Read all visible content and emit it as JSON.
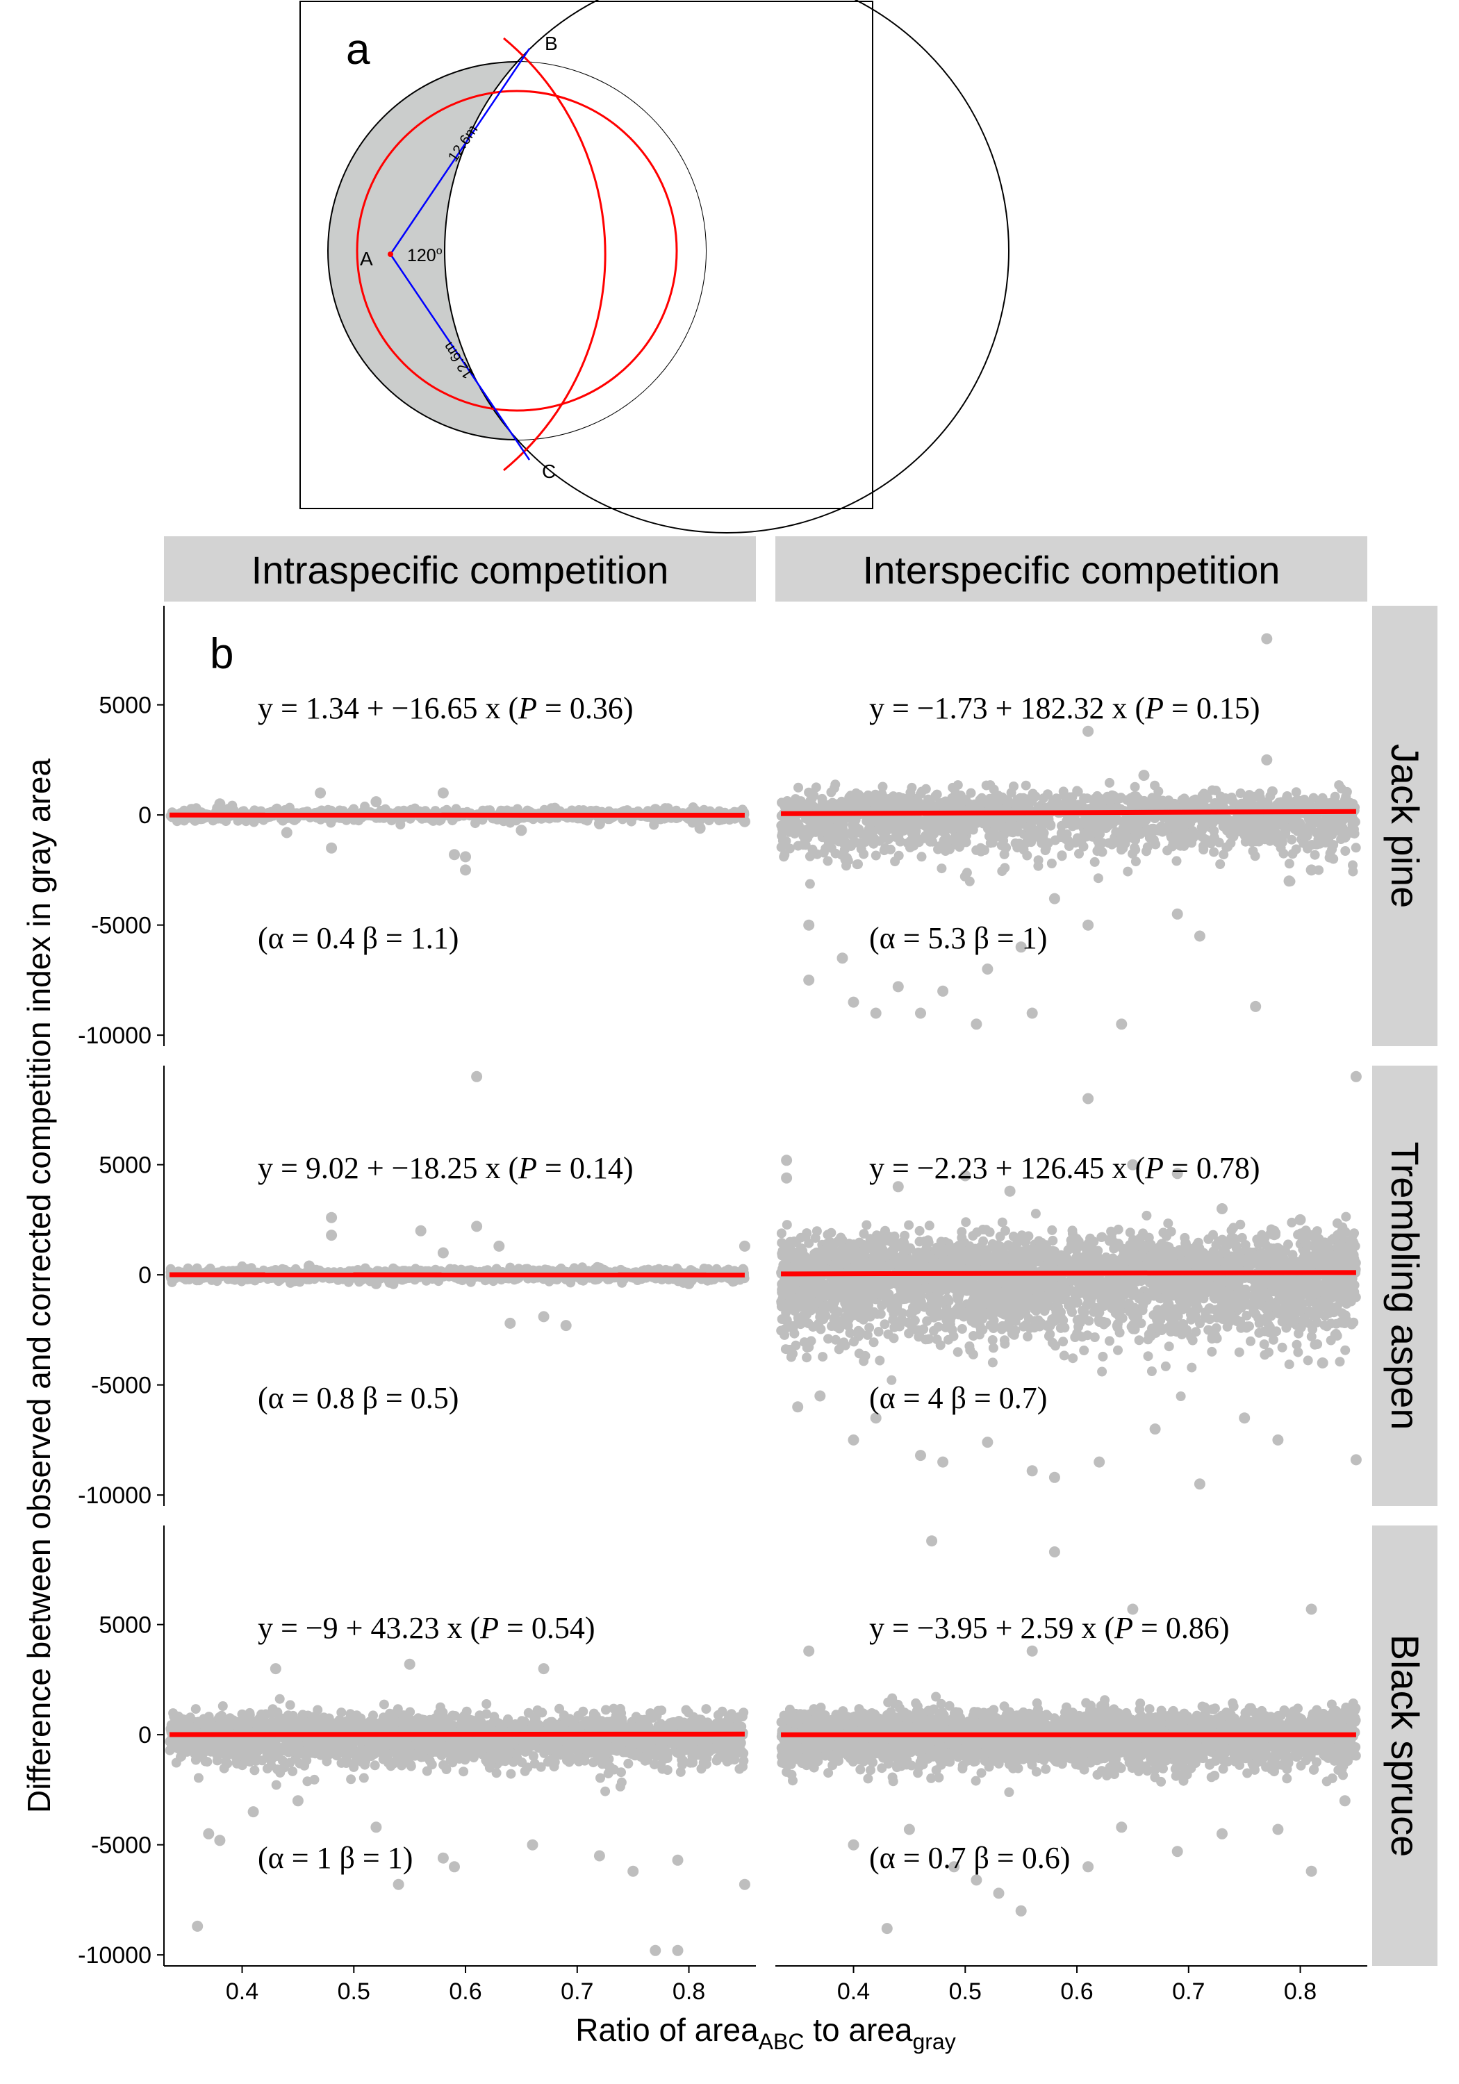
{
  "panel_a": {
    "label": "a",
    "point_labels": [
      "A",
      "B",
      "C"
    ],
    "radius_label": "12.6m",
    "angle_label": "120",
    "angle_unit": "o"
  },
  "panel_b": {
    "label": "b",
    "columns": [
      "Intraspecific competition",
      "Interspecific competition"
    ],
    "rows": [
      "Jack pine",
      "Trembling aspen",
      "Black spruce"
    ],
    "ylabel": "Difference between observed and corrected competition index in gray area",
    "xlabel_parts": [
      "Ratio of area",
      "ABC",
      " to area",
      "gray"
    ],
    "x_ticks": [
      "0.4",
      "0.5",
      "0.6",
      "0.7",
      "0.8"
    ],
    "y_ticks": [
      "5000",
      "0",
      "-5000",
      "-10000"
    ]
  },
  "colors": {
    "point": "#bebebe",
    "fit_line": "#ff0000",
    "strip": "#d3d3d3",
    "circle_fill": "#cbcdcc",
    "radius_line": "#0000ff"
  },
  "chart_data": [
    {
      "type": "scatter",
      "species": "Jack pine",
      "competition": "Intraspecific competition",
      "xlim": [
        0.33,
        0.86
      ],
      "ylim": [
        -10500,
        9500
      ],
      "equation": {
        "intercept": "1.34",
        "slope": "−16.65",
        "p": "0.36"
      },
      "params": {
        "alpha": "0.4",
        "beta": "1.1"
      },
      "fit": {
        "intercept": 1.34,
        "slope": -16.65
      },
      "points": [
        [
          0.38,
          500
        ],
        [
          0.44,
          -800
        ],
        [
          0.47,
          1000
        ],
        [
          0.48,
          -1500
        ],
        [
          0.52,
          600
        ],
        [
          0.59,
          -1800
        ],
        [
          0.6,
          -1900
        ],
        [
          0.6,
          -2500
        ],
        [
          0.58,
          1000
        ],
        [
          0.65,
          -700
        ],
        [
          0.68,
          300
        ],
        [
          0.72,
          -400
        ],
        [
          0.77,
          250
        ],
        [
          0.81,
          -600
        ],
        [
          0.85,
          -300
        ]
      ]
    },
    {
      "type": "scatter",
      "species": "Jack pine",
      "competition": "Interspecific competition",
      "xlim": [
        0.33,
        0.86
      ],
      "ylim": [
        -10500,
        9500
      ],
      "equation": {
        "intercept": "−1.73",
        "slope": "182.32",
        "p": "0.15"
      },
      "params": {
        "alpha": "5.3",
        "beta": "1"
      },
      "fit": {
        "intercept": -1.73,
        "slope": 182.32
      },
      "points": [
        [
          0.36,
          -5000
        ],
        [
          0.36,
          -7500
        ],
        [
          0.39,
          -6500
        ],
        [
          0.4,
          -8500
        ],
        [
          0.42,
          -9000
        ],
        [
          0.44,
          -7800
        ],
        [
          0.46,
          -9000
        ],
        [
          0.48,
          -8000
        ],
        [
          0.51,
          -9500
        ],
        [
          0.52,
          -7000
        ],
        [
          0.55,
          -6000
        ],
        [
          0.56,
          -9000
        ],
        [
          0.58,
          -3800
        ],
        [
          0.61,
          3800
        ],
        [
          0.61,
          -5000
        ],
        [
          0.64,
          -9500
        ],
        [
          0.66,
          1800
        ],
        [
          0.69,
          -4500
        ],
        [
          0.71,
          -5500
        ],
        [
          0.76,
          -8700
        ],
        [
          0.77,
          8000
        ],
        [
          0.77,
          2500
        ],
        [
          0.79,
          -3000
        ],
        [
          0.81,
          -2500
        ],
        [
          0.84,
          -1000
        ]
      ]
    },
    {
      "type": "scatter",
      "species": "Trembling aspen",
      "competition": "Intraspecific competition",
      "xlim": [
        0.33,
        0.86
      ],
      "ylim": [
        -10500,
        9500
      ],
      "equation": {
        "intercept": "9.02",
        "slope": "−18.25",
        "p": "0.14"
      },
      "params": {
        "alpha": "0.8",
        "beta": "0.5"
      },
      "fit": {
        "intercept": 9.02,
        "slope": -18.25
      },
      "points": [
        [
          0.46,
          400
        ],
        [
          0.48,
          2600
        ],
        [
          0.48,
          1800
        ],
        [
          0.52,
          -400
        ],
        [
          0.56,
          2000
        ],
        [
          0.58,
          1000
        ],
        [
          0.61,
          2200
        ],
        [
          0.61,
          9000
        ],
        [
          0.63,
          1300
        ],
        [
          0.64,
          -2200
        ],
        [
          0.67,
          -1900
        ],
        [
          0.69,
          -2300
        ],
        [
          0.72,
          300
        ],
        [
          0.8,
          -400
        ],
        [
          0.85,
          1300
        ]
      ]
    },
    {
      "type": "scatter",
      "species": "Trembling aspen",
      "competition": "Interspecific competition",
      "xlim": [
        0.33,
        0.86
      ],
      "ylim": [
        -10500,
        9500
      ],
      "equation": {
        "intercept": "−2.23",
        "slope": "126.45",
        "p": "0.78"
      },
      "params": {
        "alpha": "4",
        "beta": "0.7"
      },
      "fit": {
        "intercept": -2.23,
        "slope": 126.45
      },
      "points": [
        [
          0.34,
          5200
        ],
        [
          0.34,
          4400
        ],
        [
          0.35,
          -6000
        ],
        [
          0.37,
          -5500
        ],
        [
          0.4,
          -7500
        ],
        [
          0.42,
          -6500
        ],
        [
          0.44,
          4000
        ],
        [
          0.46,
          -8200
        ],
        [
          0.48,
          -8500
        ],
        [
          0.5,
          4500
        ],
        [
          0.52,
          -7600
        ],
        [
          0.54,
          3800
        ],
        [
          0.56,
          -8900
        ],
        [
          0.58,
          -9200
        ],
        [
          0.61,
          8000
        ],
        [
          0.62,
          -8500
        ],
        [
          0.65,
          5000
        ],
        [
          0.67,
          -7000
        ],
        [
          0.69,
          4600
        ],
        [
          0.71,
          -9500
        ],
        [
          0.73,
          3000
        ],
        [
          0.75,
          -6500
        ],
        [
          0.78,
          -7500
        ],
        [
          0.8,
          2500
        ],
        [
          0.82,
          -4000
        ],
        [
          0.85,
          9000
        ],
        [
          0.85,
          -8400
        ]
      ]
    },
    {
      "type": "scatter",
      "species": "Black spruce",
      "competition": "Intraspecific competition",
      "xlim": [
        0.33,
        0.86
      ],
      "ylim": [
        -10500,
        9500
      ],
      "equation": {
        "intercept": "−9",
        "slope": "43.23",
        "p": "0.54"
      },
      "params": {
        "alpha": "1",
        "beta": "1"
      },
      "fit": {
        "intercept": -9,
        "slope": 43.23
      },
      "points": [
        [
          0.36,
          -8700
        ],
        [
          0.37,
          -4500
        ],
        [
          0.38,
          -4800
        ],
        [
          0.41,
          -3500
        ],
        [
          0.43,
          3000
        ],
        [
          0.45,
          -3000
        ],
        [
          0.52,
          -4200
        ],
        [
          0.54,
          -6800
        ],
        [
          0.55,
          3200
        ],
        [
          0.58,
          -5600
        ],
        [
          0.59,
          -6000
        ],
        [
          0.66,
          -5000
        ],
        [
          0.67,
          3000
        ],
        [
          0.72,
          -5500
        ],
        [
          0.75,
          -6200
        ],
        [
          0.77,
          -9800
        ],
        [
          0.79,
          -9800
        ],
        [
          0.79,
          -5700
        ],
        [
          0.85,
          -6800
        ]
      ]
    },
    {
      "type": "scatter",
      "species": "Black spruce",
      "competition": "Interspecific competition",
      "xlim": [
        0.33,
        0.86
      ],
      "ylim": [
        -10500,
        9500
      ],
      "equation": {
        "intercept": "−3.95",
        "slope": "2.59",
        "p": "0.86"
      },
      "params": {
        "alpha": "0.7",
        "beta": "0.6"
      },
      "fit": {
        "intercept": -3.95,
        "slope": 2.59
      },
      "points": [
        [
          0.36,
          3800
        ],
        [
          0.4,
          -5000
        ],
        [
          0.43,
          -8800
        ],
        [
          0.45,
          -4300
        ],
        [
          0.47,
          8800
        ],
        [
          0.49,
          -6000
        ],
        [
          0.51,
          -6600
        ],
        [
          0.53,
          -7200
        ],
        [
          0.55,
          -8000
        ],
        [
          0.56,
          3800
        ],
        [
          0.58,
          8300
        ],
        [
          0.61,
          -6000
        ],
        [
          0.64,
          -4200
        ],
        [
          0.65,
          5700
        ],
        [
          0.69,
          -5300
        ],
        [
          0.73,
          -4500
        ],
        [
          0.78,
          -4300
        ],
        [
          0.81,
          5700
        ],
        [
          0.81,
          -6200
        ],
        [
          0.84,
          -3000
        ]
      ]
    }
  ]
}
